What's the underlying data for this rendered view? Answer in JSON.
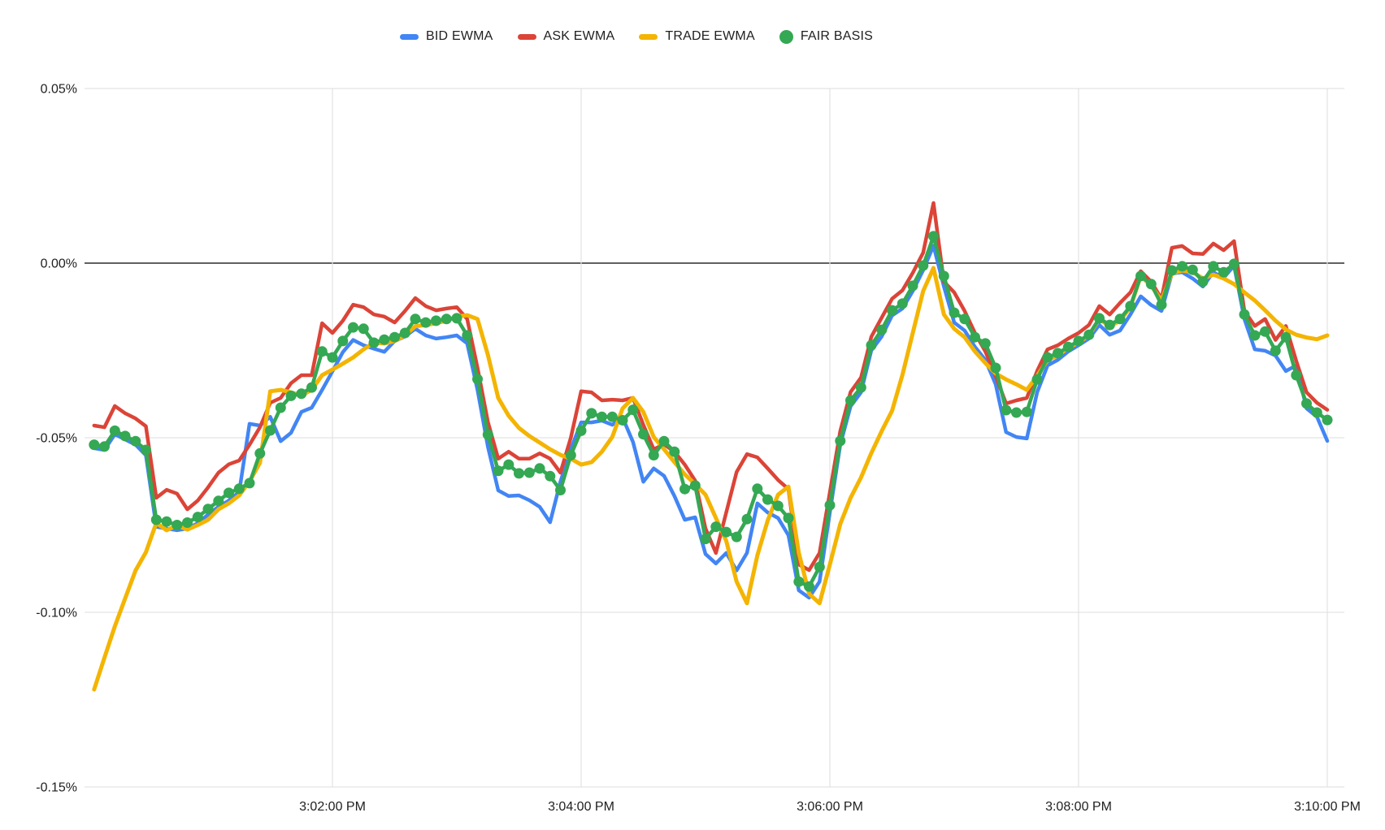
{
  "chart_data": {
    "type": "line",
    "title": "",
    "value_unit": "%",
    "x_unit": "time of day",
    "x_start_label": "3:00:05 PM",
    "x_start_offset_s": 5,
    "x_step_s": 5,
    "x_domain_s": [
      0,
      608
    ],
    "x_tick_labels": [
      "3:02:00 PM",
      "3:04:00 PM",
      "3:06:00 PM",
      "3:08:00 PM",
      "3:10:00 PM"
    ],
    "x_tick_offsets_s": [
      120,
      240,
      360,
      480,
      600
    ],
    "ylim": [
      -0.15,
      0.05
    ],
    "y_tick_labels": [
      "0.05%",
      "0.00%",
      "-0.05%",
      "-0.10%",
      "-0.15%"
    ],
    "y_tick_values": [
      0.05,
      0.0,
      -0.05,
      -0.1,
      -0.15
    ],
    "grid": true,
    "legend_position": "top",
    "series": [
      {
        "name": "BID EWMA",
        "color": "#4285F4",
        "marker": "dash",
        "points": false,
        "values": [
          -0.053,
          -0.0535,
          -0.049,
          -0.0505,
          -0.052,
          -0.055,
          -0.0755,
          -0.076,
          -0.0765,
          -0.076,
          -0.0745,
          -0.072,
          -0.0698,
          -0.068,
          -0.0655,
          -0.046,
          -0.0465,
          -0.044,
          -0.051,
          -0.0486,
          -0.0426,
          -0.0414,
          -0.0363,
          -0.031,
          -0.0255,
          -0.022,
          -0.0235,
          -0.0245,
          -0.0254,
          -0.0223,
          -0.021,
          -0.0188,
          -0.0207,
          -0.0216,
          -0.0212,
          -0.0207,
          -0.023,
          -0.0363,
          -0.0526,
          -0.0651,
          -0.0667,
          -0.0665,
          -0.0679,
          -0.0698,
          -0.0742,
          -0.0626,
          -0.0533,
          -0.0456,
          -0.0456,
          -0.0451,
          -0.0463,
          -0.0442,
          -0.0512,
          -0.0626,
          -0.0588,
          -0.0609,
          -0.0667,
          -0.0735,
          -0.0728,
          -0.0833,
          -0.086,
          -0.083,
          -0.088,
          -0.083,
          -0.0688,
          -0.0714,
          -0.073,
          -0.0779,
          -0.0937,
          -0.0958,
          -0.0912,
          -0.0714,
          -0.052,
          -0.041,
          -0.037,
          -0.025,
          -0.021,
          -0.015,
          -0.013,
          -0.008,
          -0.002,
          0.005,
          -0.0067,
          -0.017,
          -0.0193,
          -0.024,
          -0.0277,
          -0.0347,
          -0.0484,
          -0.0498,
          -0.0502,
          -0.037,
          -0.0293,
          -0.0277,
          -0.0253,
          -0.0235,
          -0.0216,
          -0.0177,
          -0.0205,
          -0.0193,
          -0.0147,
          -0.0095,
          -0.012,
          -0.0137,
          -0.003,
          -0.0026,
          -0.0044,
          -0.0067,
          -0.0026,
          -0.0042,
          -0.0007,
          -0.016,
          -0.0247,
          -0.0251,
          -0.0265,
          -0.0309,
          -0.0293,
          -0.0416,
          -0.044,
          -0.0509
        ]
      },
      {
        "name": "ASK EWMA",
        "color": "#DB4437",
        "marker": "dash",
        "points": false,
        "values": [
          -0.0465,
          -0.047,
          -0.0409,
          -0.043,
          -0.0445,
          -0.0467,
          -0.0672,
          -0.0649,
          -0.066,
          -0.0705,
          -0.068,
          -0.0642,
          -0.06,
          -0.0576,
          -0.0565,
          -0.052,
          -0.047,
          -0.04,
          -0.0386,
          -0.0344,
          -0.0321,
          -0.0321,
          -0.0172,
          -0.02,
          -0.0165,
          -0.0119,
          -0.0126,
          -0.0147,
          -0.0153,
          -0.017,
          -0.0137,
          -0.01,
          -0.0123,
          -0.0135,
          -0.013,
          -0.0126,
          -0.016,
          -0.03,
          -0.0455,
          -0.056,
          -0.054,
          -0.056,
          -0.056,
          -0.0545,
          -0.056,
          -0.06,
          -0.05,
          -0.0367,
          -0.037,
          -0.0393,
          -0.0391,
          -0.0393,
          -0.0386,
          -0.0463,
          -0.0533,
          -0.0519,
          -0.054,
          -0.0577,
          -0.0623,
          -0.076,
          -0.083,
          -0.0714,
          -0.0598,
          -0.0547,
          -0.0556,
          -0.0588,
          -0.0621,
          -0.0647,
          -0.0863,
          -0.0879,
          -0.083,
          -0.0656,
          -0.0481,
          -0.0369,
          -0.0328,
          -0.0211,
          -0.0156,
          -0.0102,
          -0.0078,
          -0.0028,
          0.003,
          0.0172,
          -0.0053,
          -0.0084,
          -0.0137,
          -0.02,
          -0.0253,
          -0.0323,
          -0.0402,
          -0.0393,
          -0.0386,
          -0.0309,
          -0.0247,
          -0.0235,
          -0.0216,
          -0.02,
          -0.0177,
          -0.0123,
          -0.0147,
          -0.0114,
          -0.0084,
          -0.0023,
          -0.0053,
          -0.0102,
          0.0044,
          0.0049,
          0.0028,
          0.0026,
          0.0056,
          0.0037,
          0.0063,
          -0.0137,
          -0.018,
          -0.016,
          -0.022,
          -0.018,
          -0.028,
          -0.037,
          -0.04,
          -0.042
        ]
      },
      {
        "name": "TRADE EWMA",
        "color": "#F4B400",
        "marker": "dash",
        "points": false,
        "values": [
          -0.1221,
          -0.113,
          -0.104,
          -0.096,
          -0.088,
          -0.0828,
          -0.0744,
          -0.0765,
          -0.0751,
          -0.0763,
          -0.075,
          -0.0735,
          -0.0705,
          -0.0688,
          -0.0665,
          -0.0625,
          -0.0572,
          -0.0367,
          -0.0363,
          -0.037,
          -0.0379,
          -0.0363,
          -0.0321,
          -0.0305,
          -0.0288,
          -0.027,
          -0.0247,
          -0.0228,
          -0.023,
          -0.0223,
          -0.0207,
          -0.0181,
          -0.0177,
          -0.0172,
          -0.0165,
          -0.0153,
          -0.0149,
          -0.016,
          -0.0263,
          -0.0386,
          -0.0437,
          -0.0472,
          -0.0495,
          -0.0514,
          -0.0533,
          -0.0549,
          -0.056,
          -0.0577,
          -0.057,
          -0.054,
          -0.0498,
          -0.0416,
          -0.0386,
          -0.0426,
          -0.0498,
          -0.0533,
          -0.057,
          -0.0605,
          -0.0633,
          -0.0663,
          -0.073,
          -0.0795,
          -0.0912,
          -0.0974,
          -0.0837,
          -0.0737,
          -0.0663,
          -0.064,
          -0.083,
          -0.0947,
          -0.0974,
          -0.0863,
          -0.0747,
          -0.0672,
          -0.0614,
          -0.0544,
          -0.0481,
          -0.0423,
          -0.032,
          -0.02,
          -0.008,
          -0.0014,
          -0.0147,
          -0.0188,
          -0.0212,
          -0.0253,
          -0.0286,
          -0.0316,
          -0.0333,
          -0.0347,
          -0.0363,
          -0.0323,
          -0.0277,
          -0.0265,
          -0.0242,
          -0.0228,
          -0.0207,
          -0.016,
          -0.0181,
          -0.0165,
          -0.0126,
          -0.0037,
          -0.0065,
          -0.0107,
          -0.003,
          -0.0021,
          -0.0026,
          -0.0044,
          -0.0033,
          -0.0044,
          -0.006,
          -0.0084,
          -0.0107,
          -0.0135,
          -0.0165,
          -0.019,
          -0.0205,
          -0.0213,
          -0.0218,
          -0.0207
        ]
      },
      {
        "name": "FAIR BASIS",
        "color": "#34A853",
        "marker": "circle",
        "points": true,
        "values": [
          -0.052,
          -0.0525,
          -0.048,
          -0.0495,
          -0.051,
          -0.0535,
          -0.0735,
          -0.074,
          -0.075,
          -0.0743,
          -0.0727,
          -0.0704,
          -0.0681,
          -0.0658,
          -0.0646,
          -0.063,
          -0.0545,
          -0.0479,
          -0.0414,
          -0.038,
          -0.0374,
          -0.0356,
          -0.0253,
          -0.027,
          -0.0223,
          -0.0184,
          -0.0188,
          -0.0228,
          -0.0219,
          -0.0212,
          -0.02,
          -0.016,
          -0.017,
          -0.0165,
          -0.016,
          -0.0158,
          -0.0207,
          -0.0332,
          -0.0491,
          -0.0595,
          -0.0577,
          -0.0602,
          -0.06,
          -0.0588,
          -0.061,
          -0.065,
          -0.055,
          -0.048,
          -0.043,
          -0.044,
          -0.044,
          -0.045,
          -0.042,
          -0.049,
          -0.055,
          -0.051,
          -0.054,
          -0.0647,
          -0.0637,
          -0.079,
          -0.0755,
          -0.077,
          -0.0784,
          -0.0733,
          -0.0646,
          -0.0677,
          -0.0695,
          -0.073,
          -0.0912,
          -0.0926,
          -0.087,
          -0.0693,
          -0.0509,
          -0.0393,
          -0.0356,
          -0.0235,
          -0.0191,
          -0.0135,
          -0.0116,
          -0.0065,
          -0.0007,
          0.0077,
          -0.0037,
          -0.0142,
          -0.016,
          -0.0212,
          -0.023,
          -0.03,
          -0.0421,
          -0.0428,
          -0.0426,
          -0.0333,
          -0.027,
          -0.0258,
          -0.024,
          -0.0223,
          -0.0205,
          -0.0158,
          -0.0177,
          -0.016,
          -0.0123,
          -0.0037,
          -0.006,
          -0.0119,
          -0.0021,
          -0.0009,
          -0.0019,
          -0.0053,
          -0.0009,
          -0.0026,
          -0.0002,
          -0.0147,
          -0.0207,
          -0.0196,
          -0.0251,
          -0.0212,
          -0.0321,
          -0.0402,
          -0.0428,
          -0.0449
        ]
      }
    ],
    "colors": {
      "grid": "#e3e3e3",
      "zero_line": "#2b2b2b",
      "tick_text": "#1f1f1f"
    }
  }
}
